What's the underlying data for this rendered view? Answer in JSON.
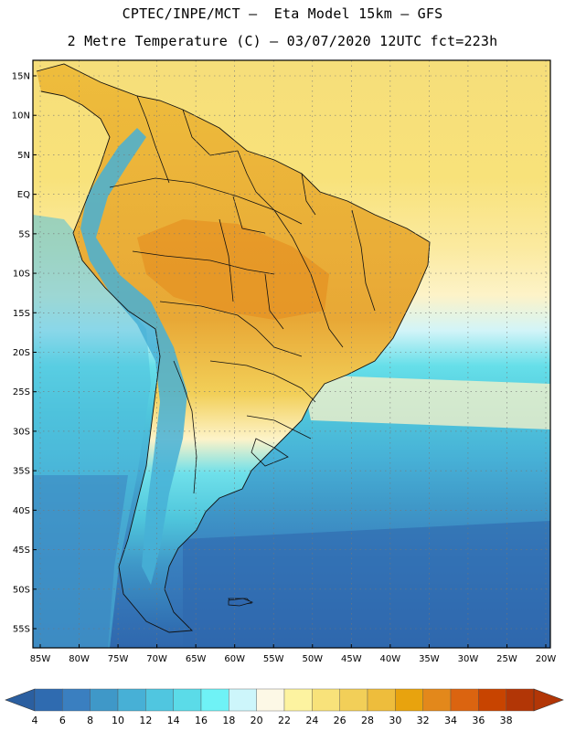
{
  "header": {
    "line1": "CPTEC/INPE/MCT –  Eta Model 15km – GFS",
    "line2": "2 Metre Temperature (C) – 03/07/2020 12UTC fct=223h"
  },
  "map": {
    "region": "South America",
    "variable": "2 Metre Temperature",
    "units": "C",
    "lat_labels": [
      "15N",
      "10N",
      "5N",
      "EQ",
      "5S",
      "10S",
      "15S",
      "20S",
      "25S",
      "30S",
      "35S",
      "40S",
      "45S",
      "50S",
      "55S"
    ],
    "lat_values": [
      15,
      10,
      5,
      0,
      -5,
      -10,
      -15,
      -20,
      -25,
      -30,
      -35,
      -40,
      -45,
      -50,
      -55
    ],
    "lon_labels": [
      "85W",
      "80W",
      "75W",
      "70W",
      "65W",
      "60W",
      "55W",
      "50W",
      "45W",
      "40W",
      "35W",
      "30W",
      "25W",
      "20W"
    ],
    "lon_values": [
      -85,
      -80,
      -75,
      -70,
      -65,
      -60,
      -55,
      -50,
      -45,
      -40,
      -35,
      -30,
      -25,
      -20
    ],
    "lat_range": [
      -58,
      17
    ],
    "lon_range": [
      -85,
      -20
    ]
  },
  "colorbar": {
    "labels": [
      "4",
      "6",
      "8",
      "10",
      "12",
      "14",
      "16",
      "18",
      "20",
      "22",
      "24",
      "26",
      "28",
      "30",
      "32",
      "34",
      "36",
      "38"
    ],
    "colors": [
      "#2f6bb0",
      "#3a7fc0",
      "#3f98c8",
      "#47b0d6",
      "#50c6e0",
      "#5bdbe8",
      "#6ff2f6",
      "#cdf6fb",
      "#fdf8e6",
      "#fdf3a0",
      "#f8e27a",
      "#f2cf58",
      "#eebd3c",
      "#e8a30e",
      "#e3881b",
      "#db6410",
      "#c84400",
      "#b23606"
    ]
  }
}
